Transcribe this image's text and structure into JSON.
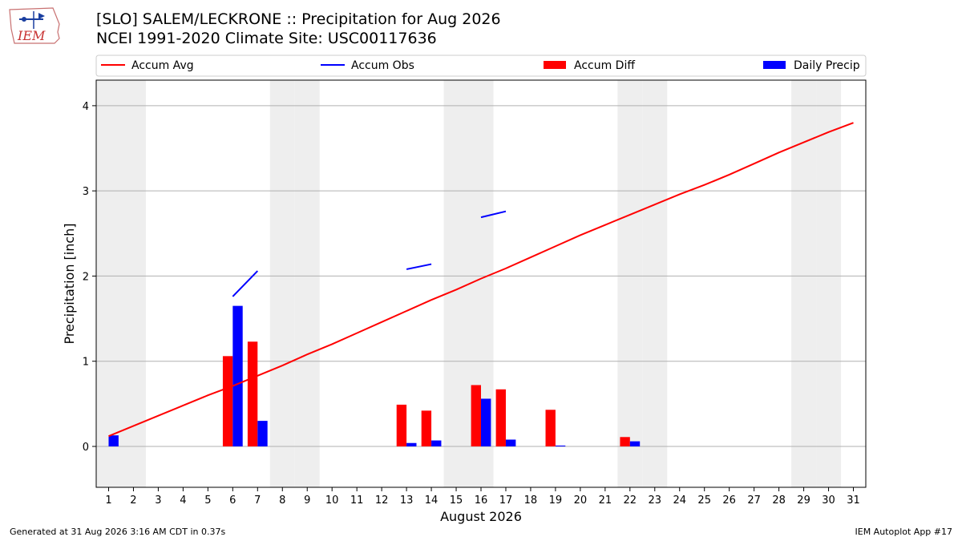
{
  "header": {
    "title_line1": "[SLO] SALEM/LECKRONE :: Precipitation for Aug 2026",
    "title_line2": "NCEI 1991-2020 Climate Site: USC00117636"
  },
  "logo": {
    "text": "IEM",
    "icon": "iem-logo-icon"
  },
  "footer": {
    "left": "Generated at 31 Aug 2026 3:16 AM CDT in 0.37s",
    "right": "IEM Autoplot App #17"
  },
  "colors": {
    "avg": "#ff0000",
    "obs": "#0000ff",
    "diff": "#ff0000",
    "daily": "#0000ff",
    "weekend": "#eeeeee",
    "grid": "#b0b0b0"
  },
  "chart_data": {
    "type": "bar",
    "xlabel": "August 2026",
    "ylabel": "Precipitation [inch]",
    "x": [
      1,
      2,
      3,
      4,
      5,
      6,
      7,
      8,
      9,
      10,
      11,
      12,
      13,
      14,
      15,
      16,
      17,
      18,
      19,
      20,
      21,
      22,
      23,
      24,
      25,
      26,
      27,
      28,
      29,
      30,
      31
    ],
    "ylim": [
      -0.48,
      4.3
    ],
    "yticks": [
      0,
      1,
      2,
      3,
      4
    ],
    "weekend_days": [
      1,
      2,
      8,
      9,
      15,
      16,
      22,
      23,
      29,
      30
    ],
    "grid": true,
    "legend_position": "top",
    "legend": [
      "Accum Avg",
      "Accum Obs",
      "Accum Diff",
      "Daily Precip"
    ],
    "series": [
      {
        "name": "Accum Avg",
        "type": "line",
        "values": [
          0.12,
          0.24,
          0.36,
          0.48,
          0.6,
          0.71,
          0.83,
          0.95,
          1.08,
          1.2,
          1.33,
          1.46,
          1.59,
          1.72,
          1.84,
          1.97,
          2.09,
          2.22,
          2.35,
          2.48,
          2.6,
          2.72,
          2.84,
          2.96,
          3.07,
          3.19,
          3.32,
          3.45,
          3.57,
          3.69,
          3.8
        ]
      },
      {
        "name": "Accum Obs",
        "type": "line",
        "values": [
          null,
          null,
          null,
          null,
          null,
          1.76,
          2.06,
          null,
          null,
          null,
          null,
          null,
          2.08,
          2.14,
          null,
          2.69,
          2.76,
          null,
          null,
          null,
          null,
          null,
          null,
          null,
          null,
          null,
          null,
          null,
          null,
          null,
          null
        ]
      },
      {
        "name": "Accum Diff",
        "type": "bar",
        "values": [
          0,
          0,
          0,
          0,
          0,
          1.06,
          1.23,
          0,
          0,
          0,
          0,
          0,
          0.49,
          0.42,
          0,
          0.72,
          0.67,
          0,
          0.43,
          0,
          0,
          0.11,
          0,
          0,
          0,
          0,
          0,
          0,
          0,
          0,
          0
        ]
      },
      {
        "name": "Daily Precip",
        "type": "bar",
        "values": [
          0.13,
          0,
          0,
          0,
          0,
          1.65,
          0.3,
          0,
          0,
          0,
          0,
          0,
          0.04,
          0.07,
          0,
          0.56,
          0.08,
          0,
          0.01,
          0,
          0,
          0.06,
          0,
          0,
          0,
          0,
          0,
          0,
          0,
          0,
          0
        ]
      }
    ]
  }
}
